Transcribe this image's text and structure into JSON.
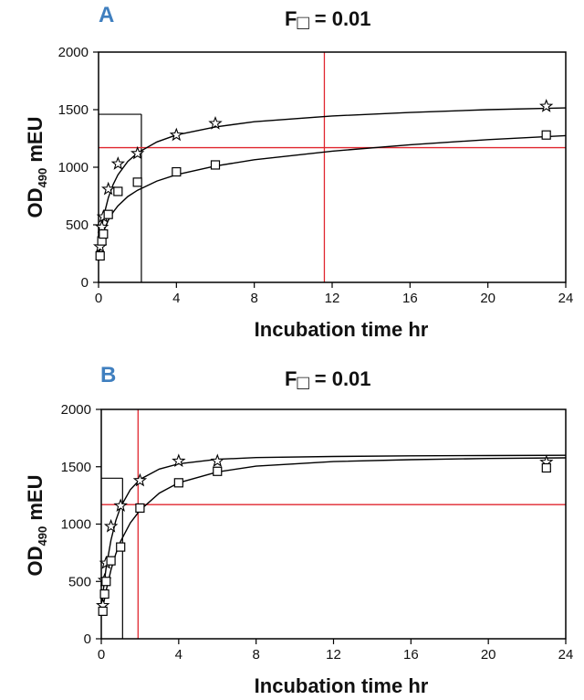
{
  "chart_data": [
    {
      "type": "scatter",
      "panel_label": "A",
      "title_prefix": "F",
      "title_subscript": "□",
      "title_suffix": "= 0.01",
      "xlabel": "Incubation time hr",
      "ylabel_main": "OD",
      "ylabel_subscript": "490",
      "ylabel_suffix": " mEU",
      "xlim": [
        0,
        24
      ],
      "ylim": [
        0,
        2000
      ],
      "xticks": [
        0,
        4,
        8,
        12,
        16,
        20,
        24
      ],
      "yticks": [
        0,
        500,
        1000,
        1500,
        2000
      ],
      "series": [
        {
          "marker": "star",
          "x": [
            0.08,
            0.17,
            0.25,
            0.5,
            1,
            2,
            4,
            6,
            23
          ],
          "y": [
            310,
            480,
            570,
            810,
            1030,
            1120,
            1280,
            1380,
            1530
          ],
          "fit": [
            [
              0,
              300
            ],
            [
              0.25,
              565
            ],
            [
              0.5,
              735
            ],
            [
              0.75,
              850
            ],
            [
              1,
              935
            ],
            [
              1.5,
              1050
            ],
            [
              2,
              1125
            ],
            [
              3,
              1220
            ],
            [
              4,
              1280
            ],
            [
              6,
              1350
            ],
            [
              8,
              1395
            ],
            [
              12,
              1445
            ],
            [
              16,
              1475
            ],
            [
              20,
              1500
            ],
            [
              24,
              1515
            ]
          ]
        },
        {
          "marker": "square",
          "x": [
            0.08,
            0.17,
            0.25,
            0.5,
            1,
            2,
            4,
            6,
            23
          ],
          "y": [
            230,
            360,
            420,
            590,
            790,
            870,
            960,
            1020,
            1280
          ],
          "fit": [
            [
              0,
              220
            ],
            [
              0.25,
              440
            ],
            [
              0.5,
              540
            ],
            [
              0.75,
              610
            ],
            [
              1,
              665
            ],
            [
              1.5,
              745
            ],
            [
              2,
              800
            ],
            [
              3,
              880
            ],
            [
              4,
              935
            ],
            [
              6,
              1010
            ],
            [
              8,
              1065
            ],
            [
              12,
              1140
            ],
            [
              16,
              1195
            ],
            [
              20,
              1240
            ],
            [
              24,
              1275
            ]
          ]
        }
      ],
      "guide_lines": [
        {
          "color": "black",
          "x": 2.2,
          "y": 1460
        },
        {
          "color": "red",
          "x": 11.6,
          "y": 1170
        }
      ]
    },
    {
      "type": "scatter",
      "panel_label": "B",
      "title_prefix": "F",
      "title_subscript": "□",
      "title_suffix": "= 0.01",
      "xlabel": "Incubation time hr",
      "ylabel_main": "OD",
      "ylabel_subscript": "490",
      "ylabel_suffix": " mEU",
      "xlim": [
        0,
        24
      ],
      "ylim": [
        0,
        2000
      ],
      "xticks": [
        0,
        4,
        8,
        12,
        16,
        20,
        24
      ],
      "yticks": [
        0,
        500,
        1000,
        1500,
        2000
      ],
      "series": [
        {
          "marker": "star",
          "x": [
            0.08,
            0.17,
            0.25,
            0.5,
            1,
            2,
            4,
            6,
            23
          ],
          "y": [
            290,
            510,
            660,
            980,
            1160,
            1380,
            1550,
            1550,
            1540
          ],
          "fit": [
            [
              0,
              280
            ],
            [
              0.25,
              620
            ],
            [
              0.5,
              860
            ],
            [
              0.75,
              1030
            ],
            [
              1,
              1150
            ],
            [
              1.5,
              1300
            ],
            [
              2,
              1390
            ],
            [
              3,
              1480
            ],
            [
              4,
              1525
            ],
            [
              6,
              1565
            ],
            [
              8,
              1580
            ],
            [
              12,
              1590
            ],
            [
              16,
              1595
            ],
            [
              20,
              1598
            ],
            [
              24,
              1600
            ]
          ]
        },
        {
          "marker": "square",
          "x": [
            0.08,
            0.17,
            0.25,
            0.5,
            1,
            2,
            4,
            6,
            23
          ],
          "y": [
            240,
            390,
            500,
            680,
            800,
            1140,
            1360,
            1460,
            1490
          ],
          "fit": [
            [
              0,
              200
            ],
            [
              0.25,
              420
            ],
            [
              0.5,
              600
            ],
            [
              0.75,
              740
            ],
            [
              1,
              850
            ],
            [
              1.5,
              1010
            ],
            [
              2,
              1120
            ],
            [
              3,
              1270
            ],
            [
              4,
              1360
            ],
            [
              6,
              1455
            ],
            [
              8,
              1505
            ],
            [
              12,
              1545
            ],
            [
              16,
              1562
            ],
            [
              20,
              1572
            ],
            [
              24,
              1578
            ]
          ]
        }
      ],
      "guide_lines": [
        {
          "color": "black",
          "x": 1.1,
          "y": 1400
        },
        {
          "color": "red",
          "x": 1.9,
          "y": 1170
        }
      ]
    }
  ]
}
